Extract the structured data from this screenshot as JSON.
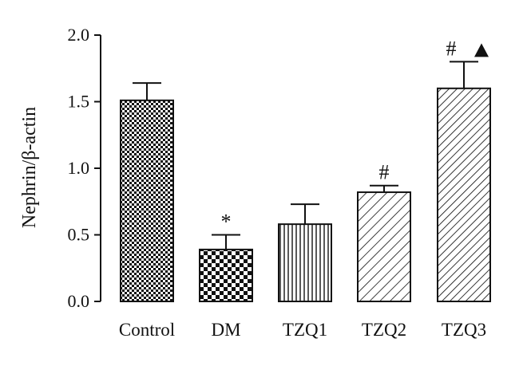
{
  "chart_data": {
    "type": "bar",
    "categories": [
      "Control",
      "DM",
      "TZQ1",
      "TZQ2",
      "TZQ3"
    ],
    "values": [
      1.51,
      0.39,
      0.58,
      0.82,
      1.6
    ],
    "errors": [
      0.13,
      0.11,
      0.15,
      0.05,
      0.2
    ],
    "annotations": [
      "",
      "*",
      "",
      "#",
      "# ▲"
    ],
    "patterns": [
      "checker-diagonal",
      "checker-large",
      "vertical-lines",
      "diagonal-lines",
      "diagonal-lines-dense"
    ],
    "title": "",
    "xlabel": "",
    "ylabel": "Nephrin/β-actin",
    "ylim": [
      0,
      2.0
    ],
    "yticks": [
      "0.0",
      "0.5",
      "1.0",
      "1.5",
      "2.0"
    ],
    "grid": false,
    "legend": "none",
    "colors": {
      "ink": "#111111",
      "background": "#ffffff"
    }
  }
}
